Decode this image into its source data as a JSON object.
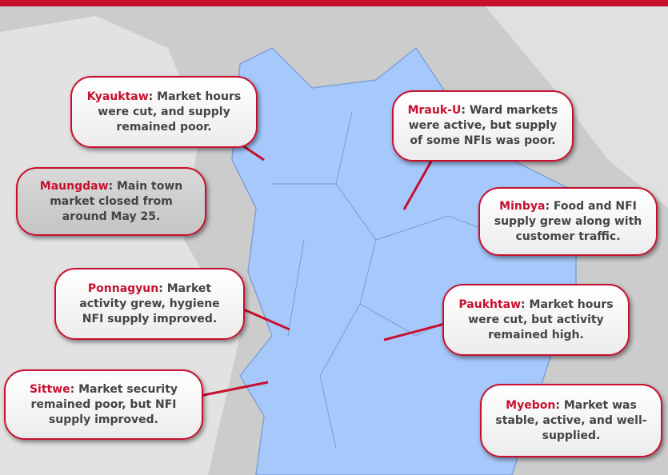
{
  "callouts": [
    {
      "name": "Kyauktaw",
      "text": ": Market hours were cut, and supply remained poor."
    },
    {
      "name": "Mrauk-U",
      "text": ": Ward markets were active, but supply of some NFIs was poor."
    },
    {
      "name": "Maungdaw",
      "text": ": Main town market closed from around May 25."
    },
    {
      "name": "Minbya",
      "text": ": Food and NFI supply grew along with customer traffic."
    },
    {
      "name": "Ponnagyun",
      "text": ": Market activity grew, hygiene NFI supply improved."
    },
    {
      "name": "Paukhtaw",
      "text": ": Market hours were cut, but activity remained high."
    },
    {
      "name": "Sittwe",
      "text": ": Market security remained poor, but NFI supply improved."
    },
    {
      "name": "Myebon",
      "text": ": Market was stable, active, and well-supplied."
    }
  ]
}
